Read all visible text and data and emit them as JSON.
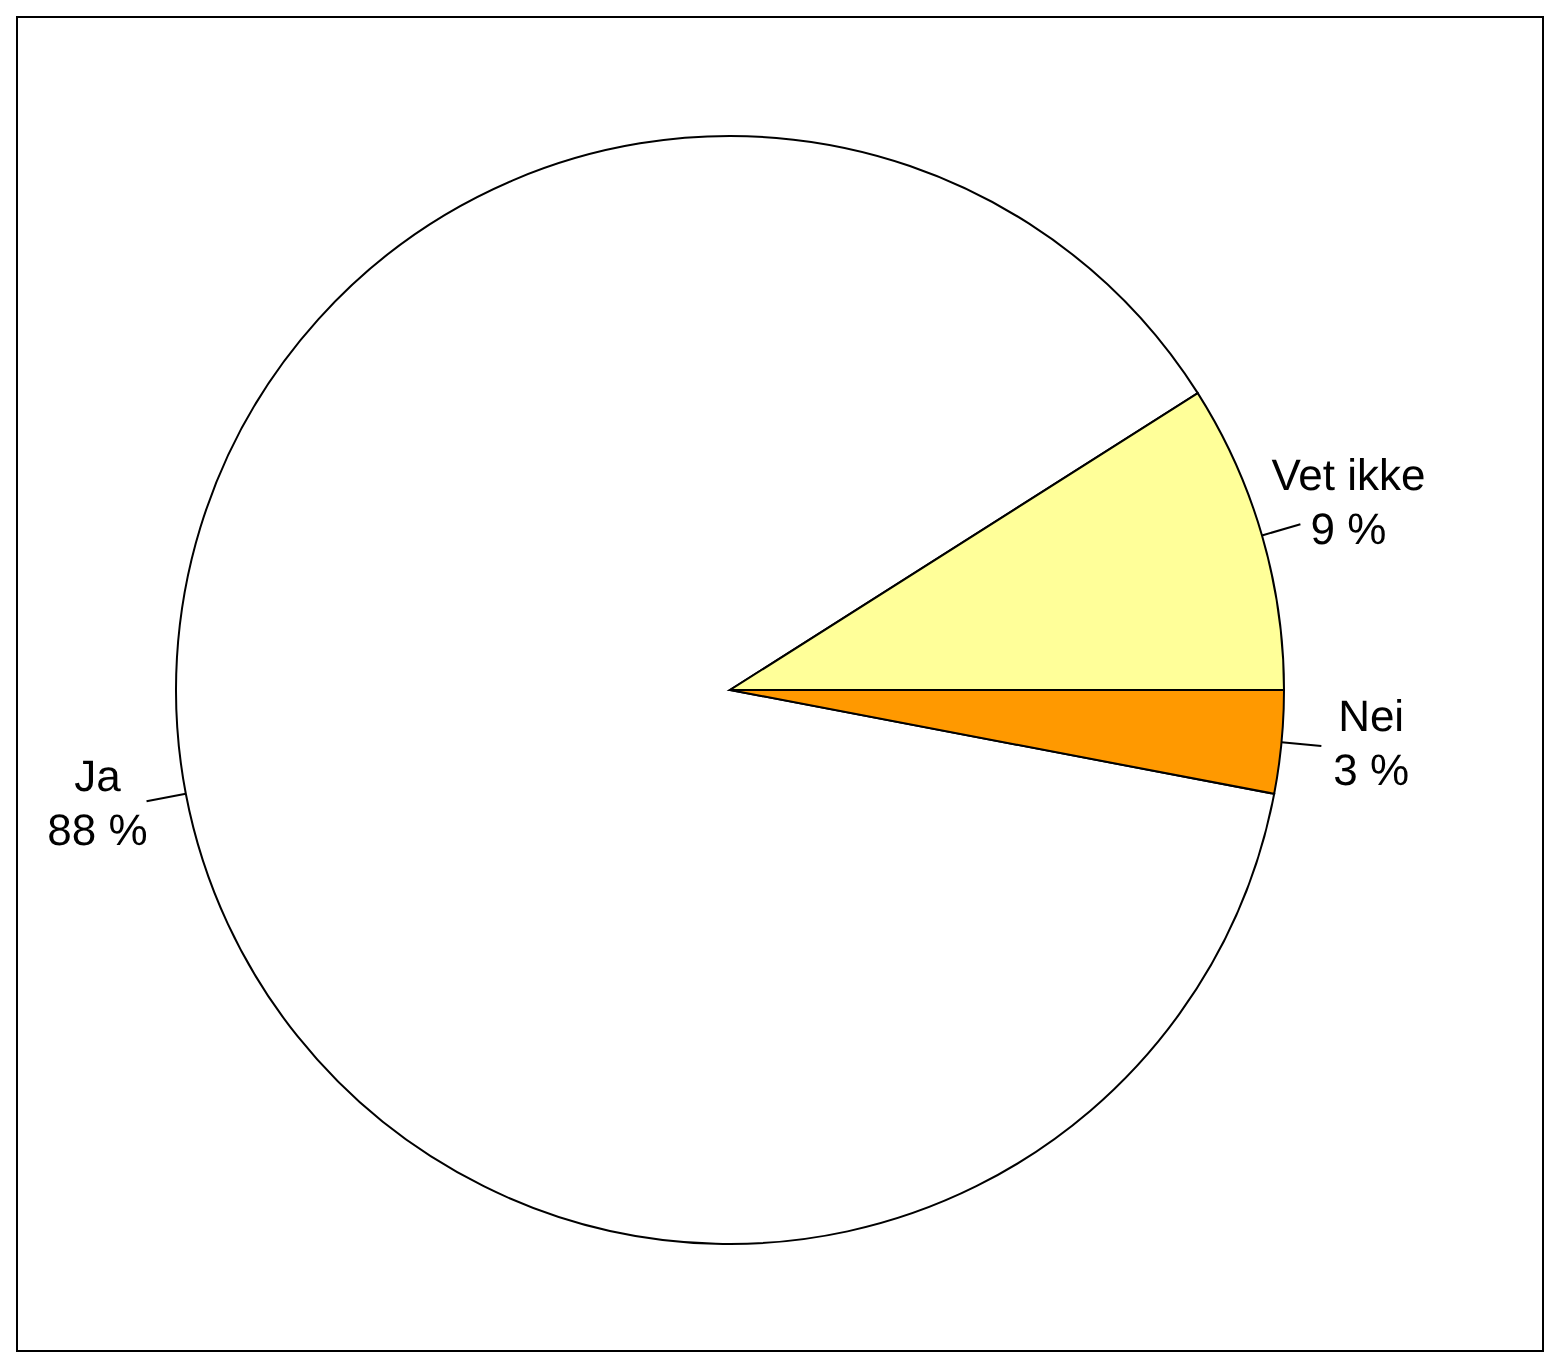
{
  "chart_data": {
    "type": "pie",
    "categories": [
      "Ja",
      "Nei",
      "Vet ikke"
    ],
    "values": [
      88,
      3,
      9
    ],
    "colors": [
      "#ffffff",
      "#ff9900",
      "#ffff99"
    ],
    "value_labels": [
      "88 %",
      "3 %",
      "9 %"
    ]
  }
}
